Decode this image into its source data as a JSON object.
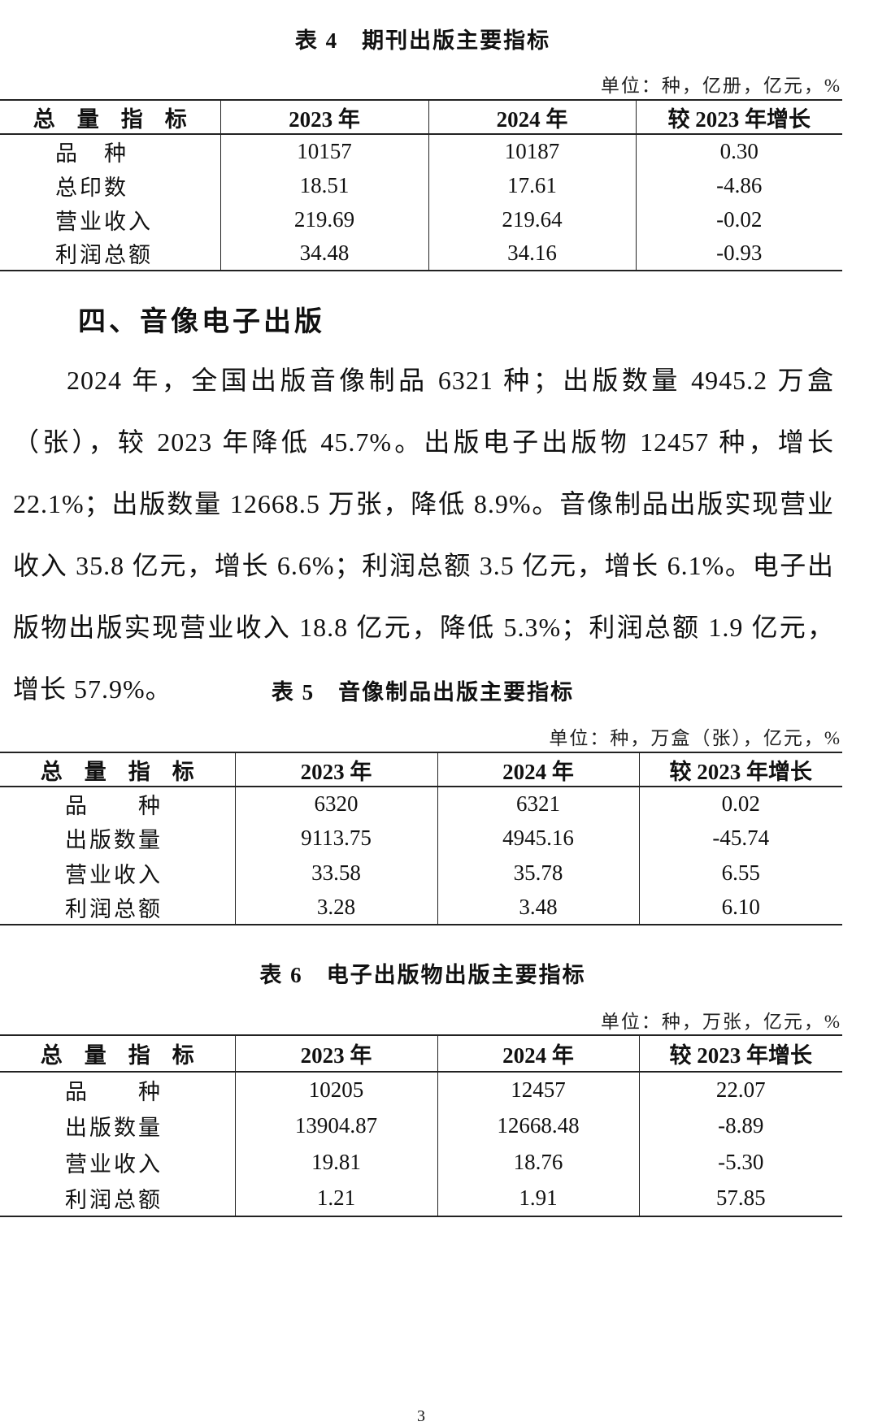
{
  "table4": {
    "title": "表 4　期刊出版主要指标",
    "unit": "单位：种，亿册，亿元，%",
    "headers": [
      "总　量　指　标",
      "2023 年",
      "2024 年",
      "较 2023 年增长"
    ],
    "rows": [
      [
        "品　种",
        "10157",
        "10187",
        "0.30"
      ],
      [
        "总印数",
        "18.51",
        "17.61",
        "-4.86"
      ],
      [
        "营业收入",
        "219.69",
        "219.64",
        "-0.02"
      ],
      [
        "利润总额",
        "34.48",
        "34.16",
        "-0.93"
      ]
    ]
  },
  "section": {
    "heading": "四、音像电子出版",
    "paragraph": "2024 年，全国出版音像制品 6321 种；出版数量 4945.2 万盒（张），较 2023 年降低 45.7%。出版电子出版物 12457 种，增长 22.1%；出版数量 12668.5 万张，降低 8.9%。音像制品出版实现营业收入 35.8 亿元，增长 6.6%；利润总额 3.5 亿元，增长 6.1%。电子出版物出版实现营业收入 18.8 亿元，降低 5.3%；利润总额 1.9 亿元，增长 57.9%。"
  },
  "table5": {
    "title": "表 5　音像制品出版主要指标",
    "unit": "单位：种，万盒（张），亿元，%",
    "headers": [
      "总　量　指　标",
      "2023 年",
      "2024 年",
      "较 2023 年增长"
    ],
    "rows": [
      [
        "品　　种",
        "6320",
        "6321",
        "0.02"
      ],
      [
        "出版数量",
        "9113.75",
        "4945.16",
        "-45.74"
      ],
      [
        "营业收入",
        "33.58",
        "35.78",
        "6.55"
      ],
      [
        "利润总额",
        "3.28",
        "3.48",
        "6.10"
      ]
    ]
  },
  "table6": {
    "title": "表 6　电子出版物出版主要指标",
    "unit": "单位：种，万张，亿元，%",
    "headers": [
      "总　量　指　标",
      "2023 年",
      "2024 年",
      "较 2023 年增长"
    ],
    "rows": [
      [
        "品　　种",
        "10205",
        "12457",
        "22.07"
      ],
      [
        "出版数量",
        "13904.87",
        "12668.48",
        "-8.89"
      ],
      [
        "营业收入",
        "19.81",
        "18.76",
        "-5.30"
      ],
      [
        "利润总额",
        "1.21",
        "1.91",
        "57.85"
      ]
    ]
  },
  "page_number": "3"
}
